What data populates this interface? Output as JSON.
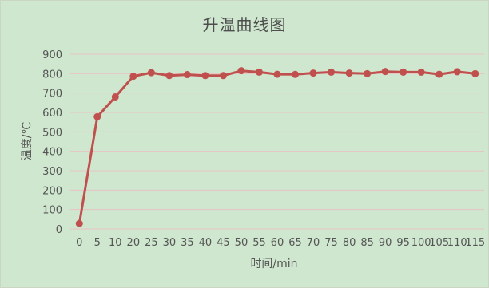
{
  "chart_data": {
    "type": "line",
    "title": "升温曲线图",
    "xlabel": "时间/min",
    "ylabel": "温度/℃",
    "x": [
      0,
      5,
      10,
      20,
      25,
      30,
      35,
      40,
      45,
      50,
      55,
      60,
      65,
      70,
      75,
      80,
      85,
      90,
      95,
      100,
      105,
      110,
      115
    ],
    "series": [
      {
        "values": [
          28,
          578,
          680,
          786,
          805,
          790,
          795,
          790,
          790,
          815,
          808,
          797,
          796,
          803,
          808,
          803,
          800,
          811,
          808,
          808,
          797,
          810,
          800
        ]
      }
    ],
    "ylim": [
      0,
      900
    ],
    "yticks": [
      0,
      100,
      200,
      300,
      400,
      500,
      600,
      700,
      800,
      900
    ],
    "grid": "horizontal",
    "line_color": "#c0504d",
    "background_color": "#cfe7cf",
    "gridline_color": "#e8c4c4"
  }
}
